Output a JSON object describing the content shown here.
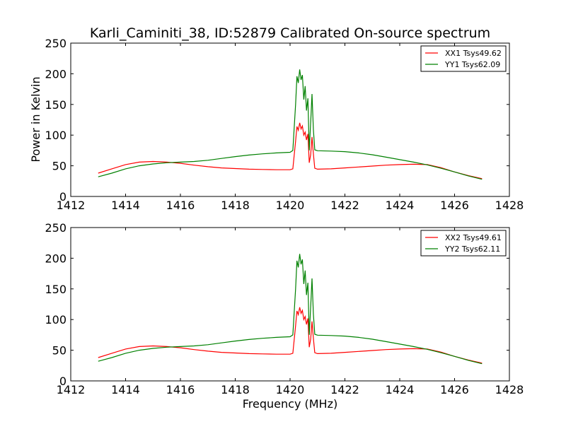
{
  "chart_data": [
    {
      "type": "line",
      "title": "Karli_Caminiti_38, ID:52879 Calibrated On-source spectrum",
      "xlabel": "",
      "ylabel": "Power in Kelvin",
      "xlim": [
        1412,
        1428
      ],
      "ylim": [
        0,
        250
      ],
      "xticks": [
        "1412",
        "1414",
        "1416",
        "1418",
        "1420",
        "1422",
        "1424",
        "1426",
        "1428"
      ],
      "yticks": [
        "0",
        "50",
        "100",
        "150",
        "200",
        "250"
      ],
      "grid": false,
      "legend": "top-right",
      "series": [
        {
          "name": "XX1 Tsys49.62",
          "color": "#ff0000",
          "x": [
            1413.0,
            1413.5,
            1414.0,
            1414.5,
            1415.0,
            1415.5,
            1416.0,
            1416.5,
            1417.0,
            1417.5,
            1418.0,
            1418.5,
            1419.0,
            1419.5,
            1420.0,
            1420.1,
            1420.2,
            1420.25,
            1420.3,
            1420.35,
            1420.4,
            1420.45,
            1420.5,
            1420.55,
            1420.6,
            1420.65,
            1420.7,
            1420.75,
            1420.8,
            1420.85,
            1420.9,
            1421.0,
            1421.5,
            1422.0,
            1422.5,
            1423.0,
            1423.5,
            1424.0,
            1424.5,
            1425.0,
            1425.5,
            1426.0,
            1426.5,
            1427.0
          ],
          "y": [
            38,
            45,
            52,
            56,
            57,
            56,
            54,
            51,
            48.5,
            46.5,
            45.5,
            44.5,
            44,
            43.5,
            43.5,
            45,
            90,
            114,
            108,
            120,
            110,
            115,
            100,
            105,
            92,
            102,
            55,
            68,
            97,
            70,
            46,
            44.5,
            45,
            46.5,
            48,
            49.5,
            51,
            52,
            52.5,
            52,
            47,
            40,
            34,
            29
          ]
        },
        {
          "name": "YY1 Tsys62.09",
          "color": "#008000",
          "x": [
            1413.0,
            1413.5,
            1414.0,
            1414.5,
            1415.0,
            1415.5,
            1416.0,
            1416.5,
            1417.0,
            1417.5,
            1418.0,
            1418.5,
            1419.0,
            1419.5,
            1420.0,
            1420.1,
            1420.2,
            1420.25,
            1420.3,
            1420.35,
            1420.4,
            1420.45,
            1420.5,
            1420.55,
            1420.6,
            1420.65,
            1420.7,
            1420.75,
            1420.8,
            1420.85,
            1420.9,
            1421.0,
            1421.5,
            1422.0,
            1422.5,
            1423.0,
            1423.5,
            1424.0,
            1424.5,
            1425.0,
            1425.5,
            1426.0,
            1426.5,
            1427.0
          ],
          "y": [
            32,
            38,
            45,
            50,
            53,
            55,
            56,
            57,
            59,
            62,
            65,
            67.5,
            69.5,
            71,
            72,
            75,
            150,
            196,
            185,
            207,
            190,
            198,
            158,
            180,
            140,
            160,
            75,
            120,
            167,
            110,
            76,
            74.5,
            74,
            73,
            71,
            68,
            64,
            60,
            56,
            51.5,
            46,
            40,
            33.5,
            28
          ]
        }
      ]
    },
    {
      "type": "line",
      "title": "",
      "xlabel": "Frequency (MHz)",
      "ylabel": "",
      "xlim": [
        1412,
        1428
      ],
      "ylim": [
        0,
        250
      ],
      "xticks": [
        "1412",
        "1414",
        "1416",
        "1418",
        "1420",
        "1422",
        "1424",
        "1426",
        "1428"
      ],
      "yticks": [
        "0",
        "50",
        "100",
        "150",
        "200",
        "250"
      ],
      "grid": false,
      "legend": "top-right",
      "series": [
        {
          "name": "XX2 Tsys49.61",
          "color": "#ff0000",
          "x": [
            1413.0,
            1413.5,
            1414.0,
            1414.5,
            1415.0,
            1415.5,
            1416.0,
            1416.5,
            1417.0,
            1417.5,
            1418.0,
            1418.5,
            1419.0,
            1419.5,
            1420.0,
            1420.1,
            1420.2,
            1420.25,
            1420.3,
            1420.35,
            1420.4,
            1420.45,
            1420.5,
            1420.55,
            1420.6,
            1420.65,
            1420.7,
            1420.75,
            1420.8,
            1420.85,
            1420.9,
            1421.0,
            1421.5,
            1422.0,
            1422.5,
            1423.0,
            1423.5,
            1424.0,
            1424.5,
            1425.0,
            1425.5,
            1426.0,
            1426.5,
            1427.0
          ],
          "y": [
            38,
            45,
            52,
            56,
            57,
            56,
            54,
            51,
            48.5,
            46.5,
            45.5,
            44.5,
            44,
            43.5,
            43.5,
            45,
            90,
            114,
            108,
            120,
            110,
            115,
            100,
            105,
            92,
            102,
            55,
            68,
            97,
            70,
            46,
            44.5,
            45,
            46.5,
            48,
            49.5,
            51,
            52,
            52.5,
            52,
            47,
            40,
            34,
            29
          ]
        },
        {
          "name": "YY2 Tsys62.11",
          "color": "#008000",
          "x": [
            1413.0,
            1413.5,
            1414.0,
            1414.5,
            1415.0,
            1415.5,
            1416.0,
            1416.5,
            1417.0,
            1417.5,
            1418.0,
            1418.5,
            1419.0,
            1419.5,
            1420.0,
            1420.1,
            1420.2,
            1420.25,
            1420.3,
            1420.35,
            1420.4,
            1420.45,
            1420.5,
            1420.55,
            1420.6,
            1420.65,
            1420.7,
            1420.75,
            1420.8,
            1420.85,
            1420.9,
            1421.0,
            1421.5,
            1422.0,
            1422.5,
            1423.0,
            1423.5,
            1424.0,
            1424.5,
            1425.0,
            1425.5,
            1426.0,
            1426.5,
            1427.0
          ],
          "y": [
            32,
            38,
            45,
            50,
            53,
            55,
            56,
            57,
            59,
            62,
            65,
            67.5,
            69.5,
            71,
            72,
            75,
            150,
            196,
            185,
            207,
            190,
            198,
            158,
            180,
            140,
            160,
            75,
            120,
            167,
            110,
            76,
            74.5,
            74,
            73,
            71,
            68,
            64,
            60,
            56,
            51.5,
            46,
            40,
            33.5,
            28
          ]
        }
      ]
    }
  ]
}
